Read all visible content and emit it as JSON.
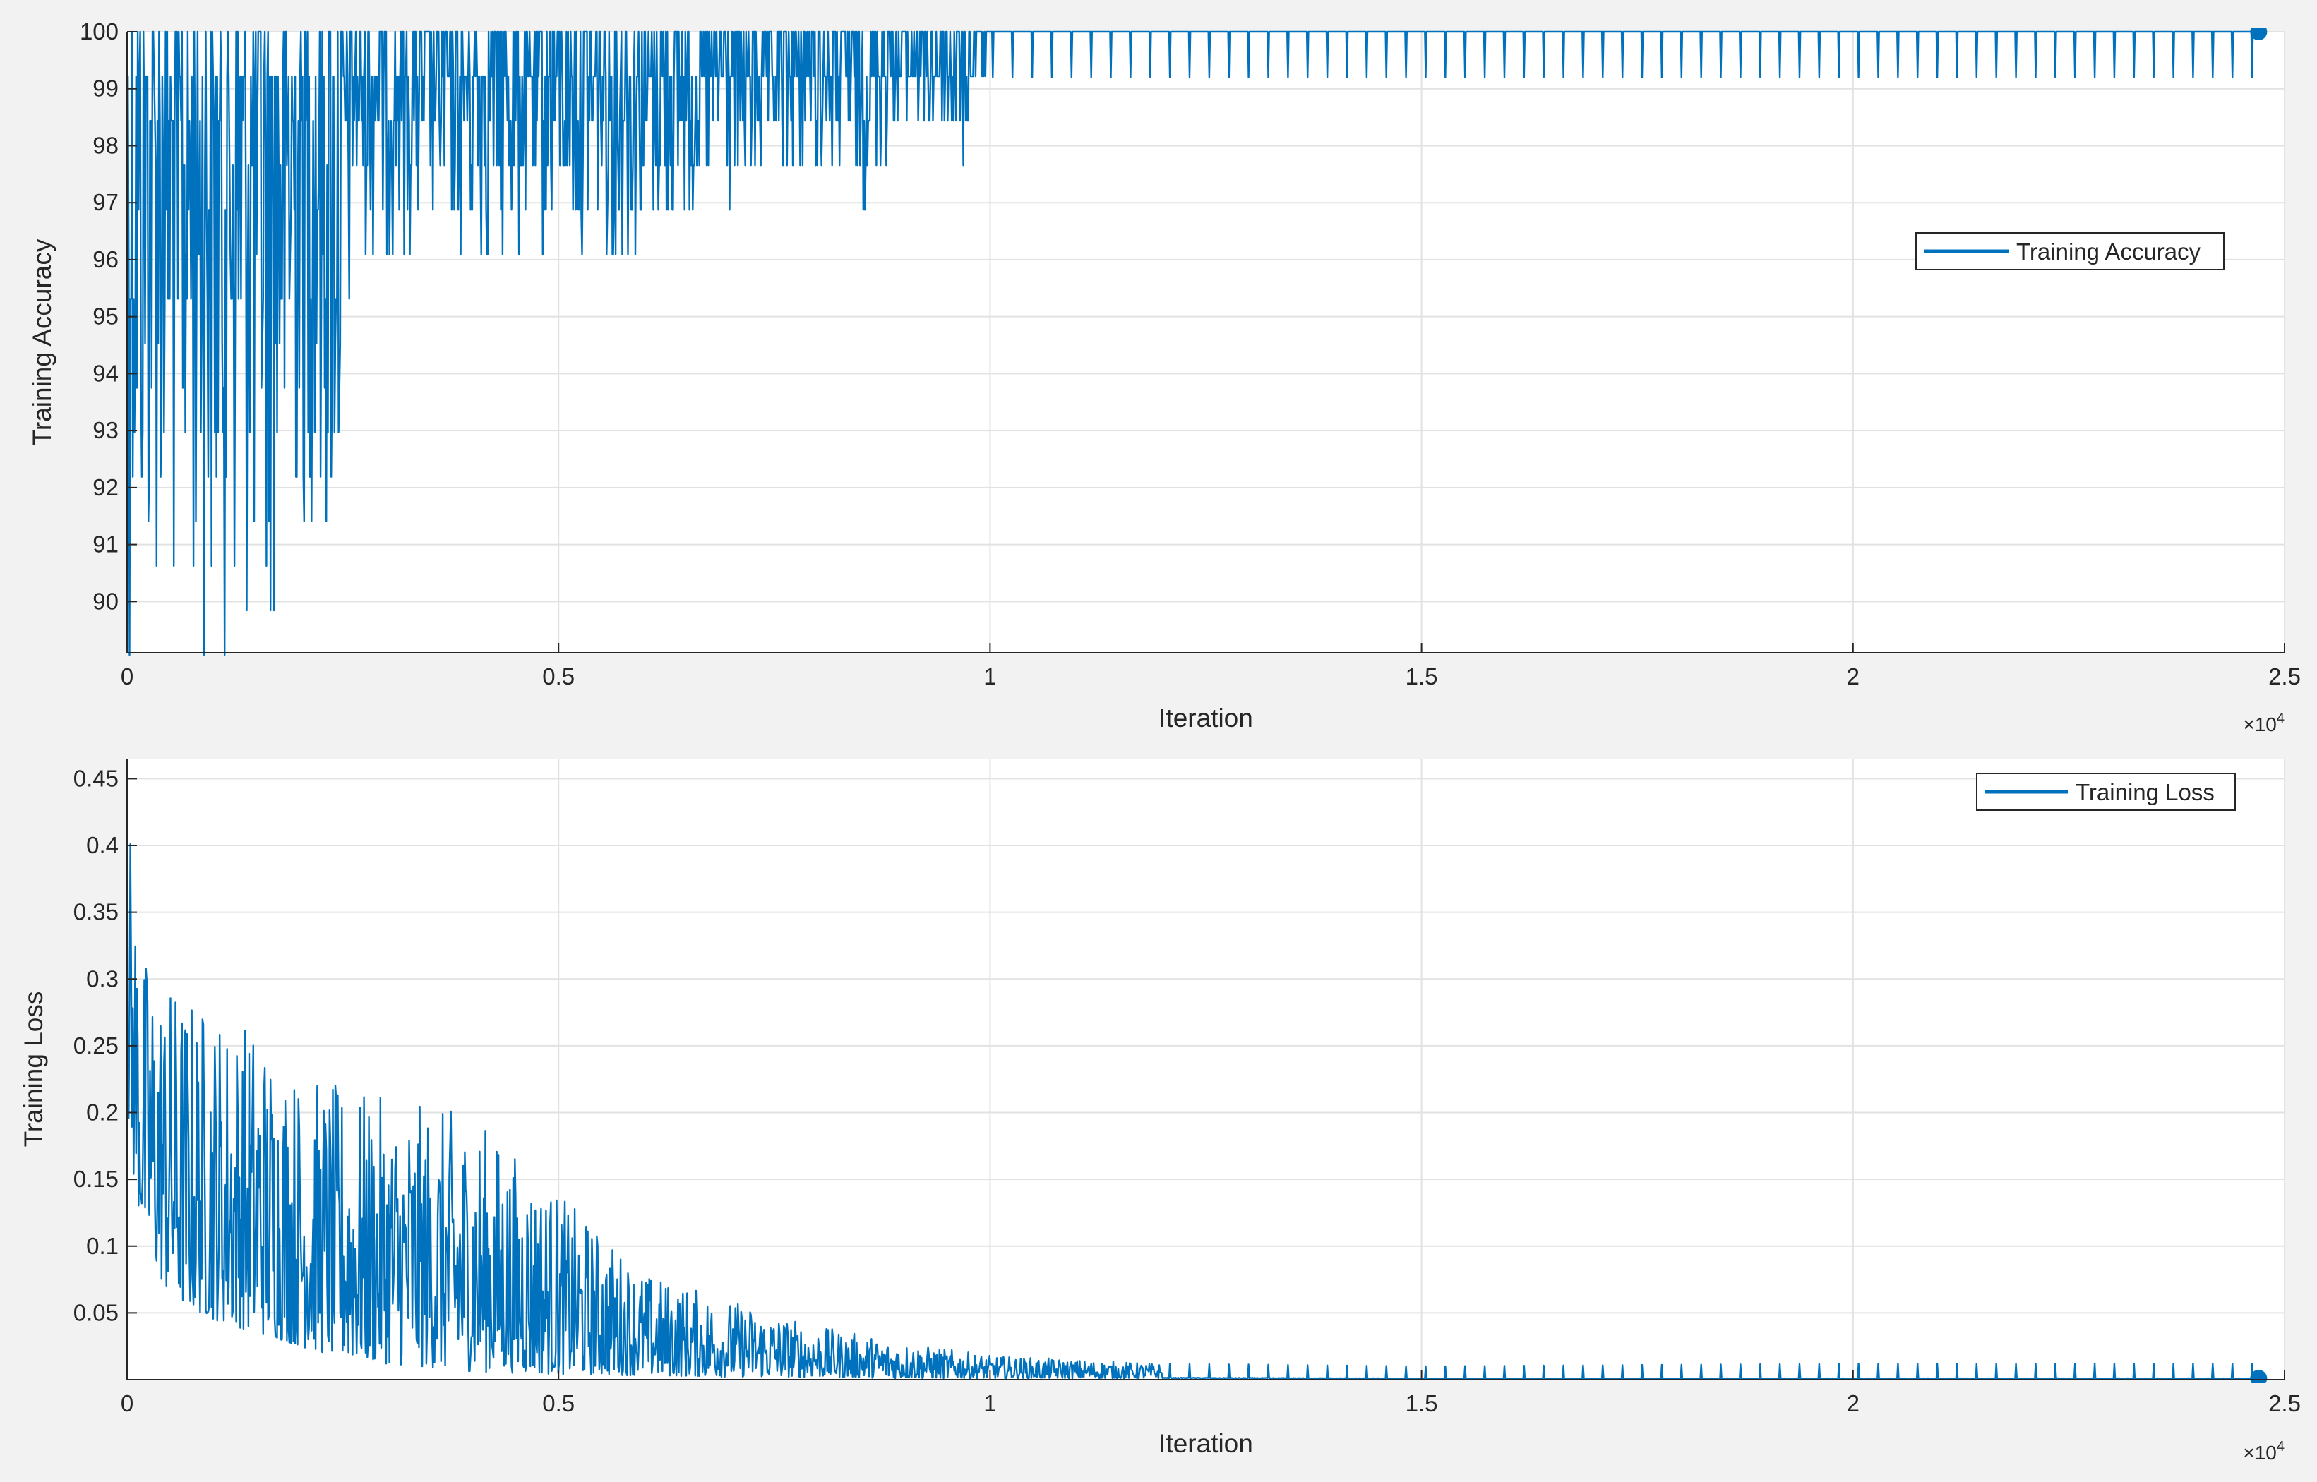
{
  "colors": {
    "figure_background": "#f2f2f2",
    "axes_background": "#ffffff",
    "grid": "#e2e2e2",
    "axis": "#262626",
    "tick_label": "#262626",
    "series": "#0072bd"
  },
  "chart_data": [
    {
      "type": "line",
      "xlabel": "Iteration",
      "ylabel": "Training Accuracy",
      "x_exponent_label": "×10",
      "x_exponent": "4",
      "xlim": [
        0,
        25000
      ],
      "ylim": [
        89.1,
        100
      ],
      "x_ticks": [
        0,
        5000,
        10000,
        15000,
        20000,
        25000
      ],
      "x_tick_labels": [
        "0",
        "0.5",
        "1",
        "1.5",
        "2",
        "2.5"
      ],
      "y_ticks": [
        90,
        91,
        92,
        93,
        94,
        95,
        96,
        97,
        98,
        99,
        100
      ],
      "y_tick_labels": [
        "90",
        "91",
        "92",
        "93",
        "94",
        "95",
        "96",
        "97",
        "98",
        "99",
        "100"
      ],
      "grid": true,
      "legend_position": "right",
      "series": [
        {
          "name": "Training Accuracy",
          "color": "#0072bd",
          "envelope": {
            "x": [
              0,
              200,
              1000,
              1800,
              2000,
              2500,
              2600,
              4000,
              6000,
              8000,
              8500,
              9000,
              9700,
              9850,
              10000,
              12000,
              15000,
              20000,
              24700
            ],
            "lower": [
              89.1,
              89.8,
              89.1,
              89.1,
              91.4,
              89.8,
              96.1,
              96.1,
              96.1,
              97.6,
              96.9,
              98.4,
              97.7,
              99.2,
              99.2,
              99.2,
              99.2,
              99.2,
              99.2
            ],
            "upper": [
              100,
              100,
              100,
              100,
              100,
              100,
              100,
              100,
              100,
              100,
              100,
              100,
              100,
              100,
              100,
              100,
              100,
              100,
              100
            ]
          },
          "final_point": {
            "x": 24700,
            "y": 100
          }
        }
      ]
    },
    {
      "type": "line",
      "xlabel": "Iteration",
      "ylabel": "Training Loss",
      "x_exponent_label": "×10",
      "x_exponent": "4",
      "xlim": [
        0,
        25000
      ],
      "ylim": [
        0,
        0.465
      ],
      "x_ticks": [
        0,
        5000,
        10000,
        15000,
        20000,
        25000
      ],
      "x_tick_labels": [
        "0",
        "0.5",
        "1",
        "1.5",
        "2",
        "2.5"
      ],
      "y_ticks": [
        0.05,
        0.1,
        0.15,
        0.2,
        0.25,
        0.3,
        0.35,
        0.4,
        0.45
      ],
      "y_tick_labels": [
        "0.05",
        "0.1",
        "0.15",
        "0.2",
        "0.25",
        "0.3",
        "0.35",
        "0.4",
        "0.45"
      ],
      "grid": true,
      "legend_position": "top-right",
      "series": [
        {
          "name": "Training Loss",
          "color": "#0072bd",
          "envelope": {
            "x": [
              0,
              50,
              200,
              500,
              1000,
              1500,
              2000,
              2500,
              3000,
              4000,
              5000,
              6000,
              7000,
              8000,
              9000,
              10000,
              12000,
              15000,
              20000,
              24700
            ],
            "lower": [
              0.2,
              0.16,
              0.1,
              0.06,
              0.045,
              0.035,
              0.025,
              0.015,
              0.012,
              0.006,
              0.004,
              0.003,
              0.002,
              0.002,
              0.001,
              0.001,
              0.001,
              0.0005,
              0.0005,
              0.0005
            ],
            "upper": [
              0.465,
              0.4,
              0.32,
              0.3,
              0.28,
              0.27,
              0.23,
              0.22,
              0.21,
              0.2,
              0.14,
              0.08,
              0.06,
              0.04,
              0.028,
              0.018,
              0.012,
              0.01,
              0.012,
              0.012
            ]
          },
          "final_point": {
            "x": 24700,
            "y": 0.001
          }
        }
      ]
    }
  ]
}
